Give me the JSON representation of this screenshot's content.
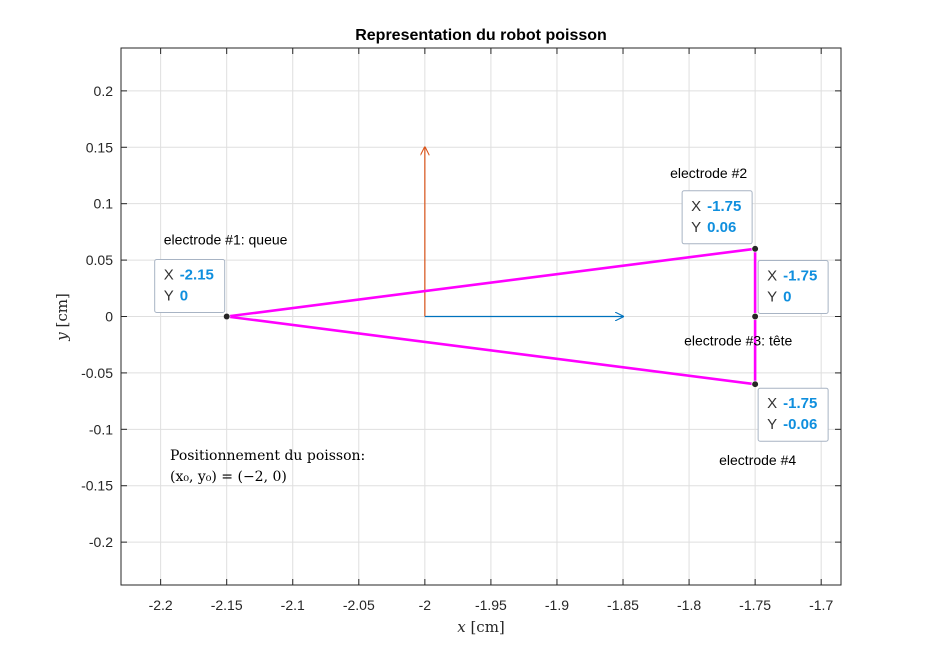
{
  "chart_data": {
    "type": "line",
    "title": "Representation du robot poisson",
    "xlabel_var": "x",
    "xlabel_unit": "[cm]",
    "ylabel_var": "y",
    "ylabel_unit": "[cm]",
    "xlim": [
      -2.23,
      -1.685
    ],
    "ylim": [
      -0.238,
      0.238
    ],
    "x_ticks": [
      -2.2,
      -2.15,
      -2.1,
      -2.05,
      -2,
      -1.95,
      -1.9,
      -1.85,
      -1.8,
      -1.75,
      -1.7
    ],
    "x_tick_labels": [
      "-2.2",
      "-2.15",
      "-2.1",
      "-2.05",
      "-2",
      "-1.95",
      "-1.9",
      "-1.85",
      "-1.8",
      "-1.75",
      "-1.7"
    ],
    "y_ticks": [
      0.2,
      0.15,
      0.1,
      0.05,
      0,
      -0.05,
      -0.1,
      -0.15,
      -0.2
    ],
    "y_tick_labels": [
      "0.2",
      "0.15",
      "0.1",
      "0.05",
      "0",
      "-0.05",
      "-0.1",
      "-0.15",
      "-0.2"
    ],
    "grid": true,
    "body_polygon": {
      "color": "#ff00ff",
      "points": [
        [
          -2.15,
          0
        ],
        [
          -1.75,
          0.06
        ],
        [
          -1.75,
          0
        ],
        [
          -1.75,
          -0.06
        ],
        [
          -2.15,
          0
        ]
      ]
    },
    "vectors": [
      {
        "color": "#d95319",
        "x": -2,
        "y": 0,
        "dx": 0,
        "dy": 0.15
      },
      {
        "color": "#0072bd",
        "x": -2,
        "y": 0,
        "dx": 0.15,
        "dy": 0
      }
    ],
    "electrodes": [
      {
        "label": "electrode #1: queue",
        "x": -2.15,
        "y": 0,
        "tip_x": "-2.15",
        "tip_y": "0"
      },
      {
        "label": "electrode #2",
        "x": -1.75,
        "y": 0.06,
        "tip_x": "-1.75",
        "tip_y": "0.06"
      },
      {
        "label": "electrode #3: tête",
        "x": -1.75,
        "y": 0,
        "tip_x": "-1.75",
        "tip_y": "0"
      },
      {
        "label": "electrode #4",
        "x": -1.75,
        "y": -0.06,
        "tip_x": "-1.75",
        "tip_y": "-0.06"
      }
    ],
    "datatip_keys": {
      "x": "X",
      "y": "Y"
    },
    "note": {
      "line1": "Positionnement du poisson:",
      "line2": "(x₀, y₀) = (−2, 0)"
    }
  }
}
